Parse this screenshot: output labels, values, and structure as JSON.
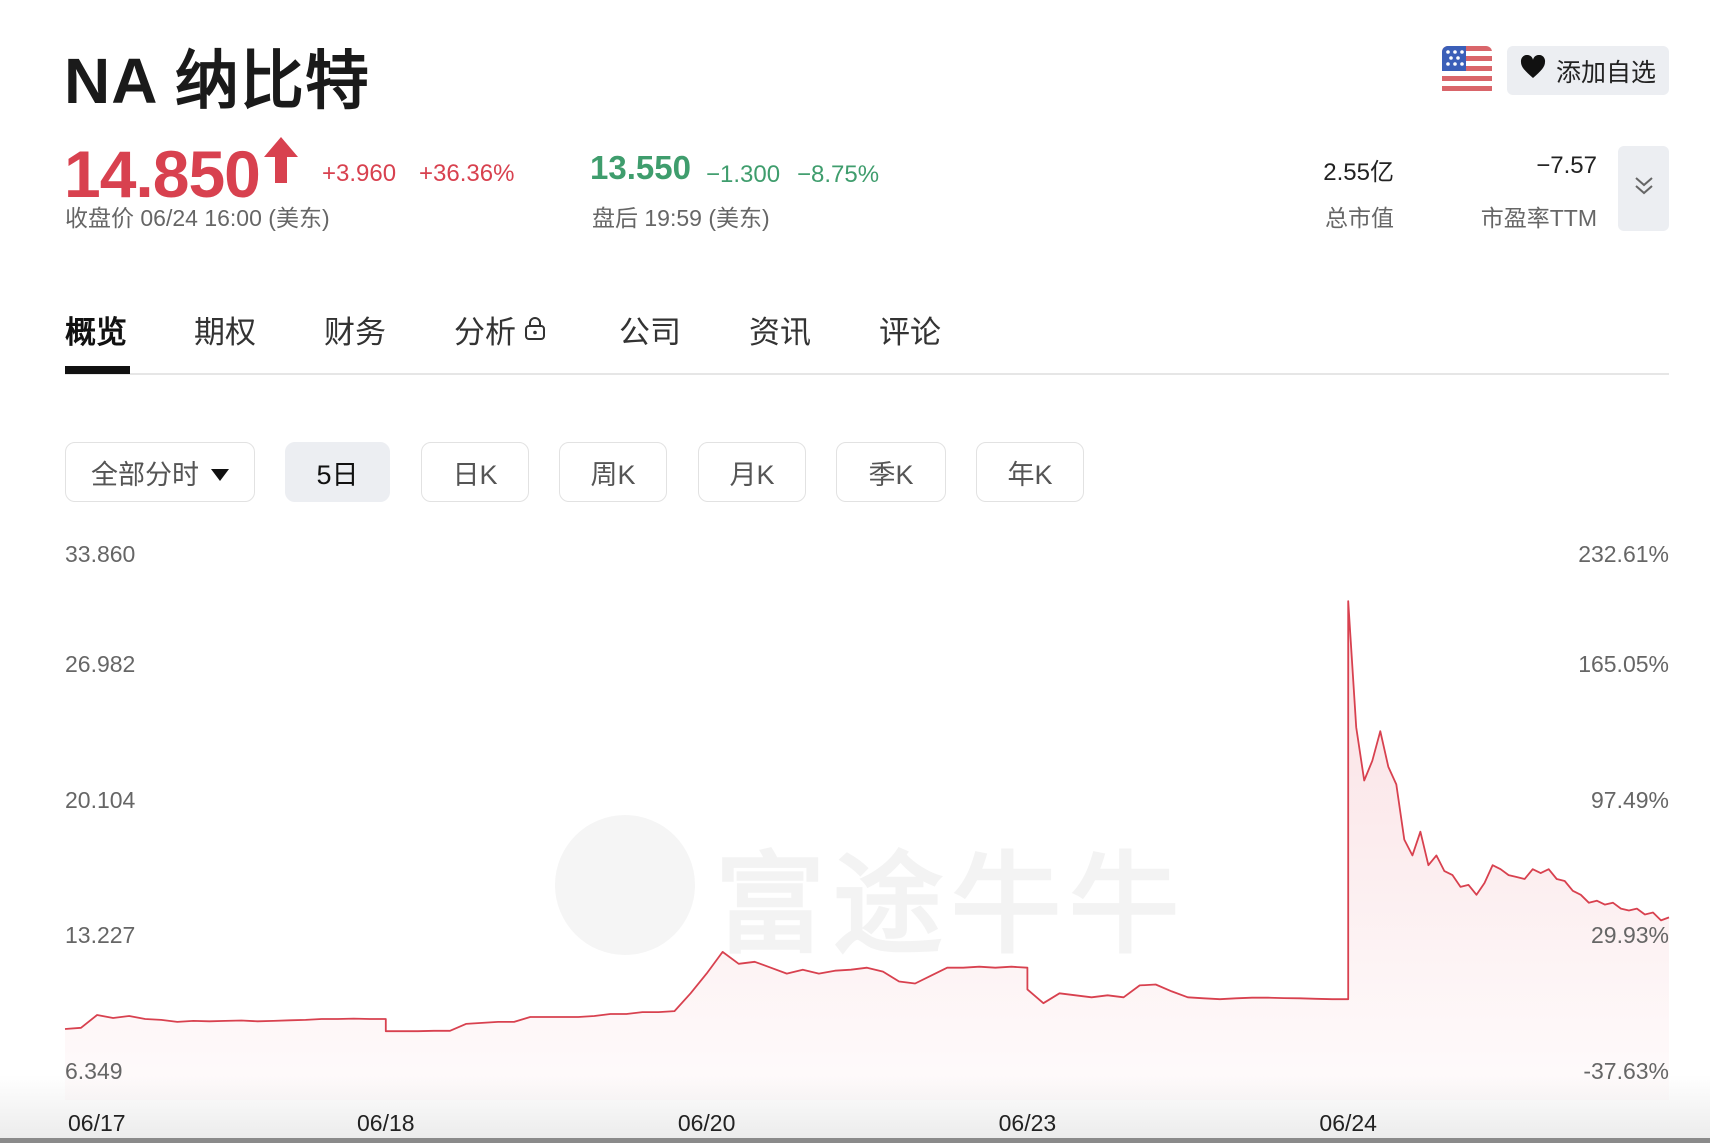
{
  "header": {
    "title": "NA 纳比特",
    "watchlist_label": "添加自选",
    "flag_icon": "us-flag-icon"
  },
  "quote": {
    "price": "14.850",
    "direction": "up",
    "change": "+3.960",
    "change_pct": "+36.36%",
    "close_label": "收盘价 06/24 16:00 (美东)",
    "after_price": "13.550",
    "after_change": "−1.300",
    "after_change_pct": "−8.75%",
    "after_label": "盘后 19:59 (美东)",
    "market_cap": "2.55亿",
    "market_cap_label": "总市值",
    "pe": "−7.57",
    "pe_label": "市盈率TTM",
    "colors": {
      "up": "#d8414f",
      "down": "#3f9d6d"
    }
  },
  "tabs": [
    {
      "label": "概览",
      "active": true
    },
    {
      "label": "期权"
    },
    {
      "label": "财务"
    },
    {
      "label": "分析",
      "icon": "lock-icon"
    },
    {
      "label": "公司"
    },
    {
      "label": "资讯"
    },
    {
      "label": "评论"
    }
  ],
  "periods": [
    {
      "label": "全部分时",
      "dropdown": true
    },
    {
      "label": "5日",
      "selected": true
    },
    {
      "label": "日K"
    },
    {
      "label": "周K"
    },
    {
      "label": "月K"
    },
    {
      "label": "季K"
    },
    {
      "label": "年K"
    }
  ],
  "watermark": "富途牛牛",
  "chart_data": {
    "type": "area",
    "line_color": "#d8414f",
    "grid": false,
    "yticks": [
      "33.860",
      "26.982",
      "20.104",
      "13.227",
      "6.349"
    ],
    "ytick_values": [
      33.86,
      26.982,
      20.104,
      13.227,
      6.349
    ],
    "ypct_ticks": [
      "232.61%",
      "165.05%",
      "97.49%",
      "29.93%",
      "-37.63%"
    ],
    "ylim": [
      6.349,
      33.86
    ],
    "days": [
      "06/17",
      "06/18",
      "06/20",
      "06/23",
      "06/24"
    ],
    "series": [
      [
        9.19,
        9.25,
        9.9,
        9.75,
        9.85,
        9.7,
        9.65,
        9.55,
        9.6,
        9.58,
        9.6,
        9.62,
        9.58,
        9.6,
        9.63,
        9.65,
        9.7,
        9.7,
        9.72,
        9.7,
        9.7
      ],
      [
        9.08,
        9.08,
        9.08,
        9.1,
        9.1,
        9.45,
        9.5,
        9.55,
        9.55,
        9.8,
        9.8,
        9.8,
        9.8,
        9.85,
        9.95,
        9.95,
        10.05,
        10.05,
        10.1,
        11.0,
        12.0
      ],
      [
        12.0,
        13.1,
        12.5,
        12.6,
        12.3,
        12.0,
        12.2,
        12.0,
        12.15,
        12.2,
        12.3,
        12.1,
        11.6,
        11.5,
        11.9,
        12.3,
        12.3,
        12.35,
        12.3,
        12.35,
        12.3
      ],
      [
        11.2,
        10.5,
        11.0,
        10.9,
        10.8,
        10.9,
        10.8,
        11.4,
        11.45,
        11.1,
        10.8,
        10.75,
        10.7,
        10.75,
        10.78,
        10.78,
        10.76,
        10.75,
        10.72,
        10.7,
        10.7
      ],
      [
        30.9,
        24.5,
        21.8,
        22.8,
        24.3,
        22.5,
        21.6,
        18.8,
        18.0,
        19.2,
        17.5,
        18.0,
        17.2,
        17.0,
        16.4,
        16.5,
        16.0,
        16.6,
        17.5,
        17.3,
        17.0,
        16.9,
        16.8,
        17.3,
        17.1,
        17.3,
        16.8,
        16.7,
        16.2,
        16.0,
        15.6,
        15.7,
        15.5,
        15.6,
        15.3,
        15.2,
        15.3,
        15.0,
        15.1,
        14.7,
        14.85
      ]
    ]
  }
}
